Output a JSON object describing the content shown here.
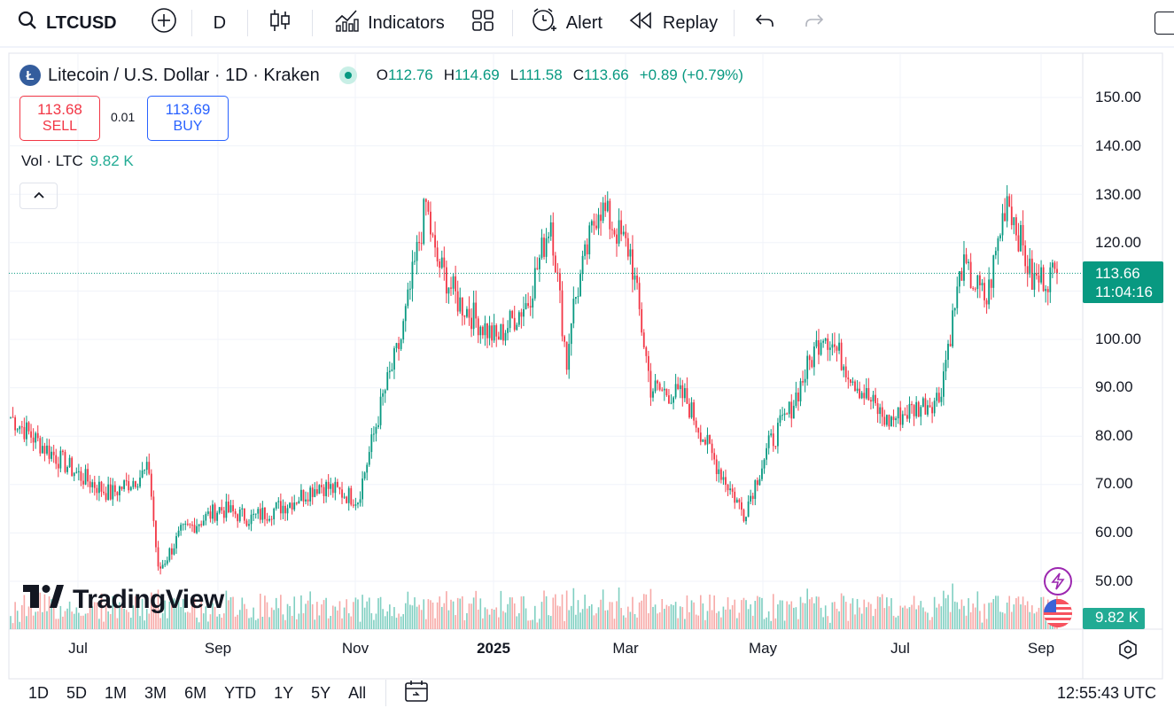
{
  "toolbar": {
    "symbol": "LTCUSD",
    "interval": "D",
    "indicators_label": "Indicators",
    "alert_label": "Alert",
    "replay_label": "Replay",
    "icons": [
      "search-icon",
      "add-symbol-icon",
      "candles-icon",
      "indicators-icon",
      "layouts-icon",
      "alert-icon",
      "replay-icon",
      "undo-icon",
      "redo-icon"
    ]
  },
  "legend": {
    "coin_letter": "Ł",
    "title": "Litecoin / U.S. Dollar · 1D · Kraken",
    "o_label": "O",
    "o_value": "112.76",
    "h_label": "H",
    "h_value": "114.69",
    "l_label": "L",
    "l_value": "111.58",
    "c_label": "C",
    "c_value": "113.66",
    "change": "+0.89 (+0.79%)",
    "sell_price": "113.68",
    "sell_label": "SELL",
    "spread": "0.01",
    "buy_price": "113.69",
    "buy_label": "BUY",
    "vol_label": "Vol · LTC",
    "vol_value": "9.82 K"
  },
  "price_axis": {
    "labels": [
      "150.00",
      "140.00",
      "130.00",
      "120.00",
      "100.00",
      "90.00",
      "80.00",
      "70.00",
      "60.00",
      "50.00"
    ],
    "last_price": "113.66",
    "countdown": "11:04:16",
    "volume_badge": "9.82 K"
  },
  "time_axis": {
    "labels": [
      "Jul",
      "Sep",
      "Nov",
      "2025",
      "Mar",
      "May",
      "Jul",
      "Sep"
    ]
  },
  "bottom": {
    "ranges": [
      "1D",
      "5D",
      "1M",
      "3M",
      "6M",
      "YTD",
      "1Y",
      "5Y",
      "All"
    ],
    "clock": "12:55:43 UTC"
  },
  "branding": {
    "logo_text": "TradingView"
  },
  "colors": {
    "up": "#089981",
    "down": "#f23645",
    "vol_up": "#7fcfc1",
    "vol_down": "#f7a9a7",
    "grid": "#f0f3fa"
  },
  "chart_data": {
    "type": "candlestick",
    "ylim": [
      45,
      152
    ],
    "x": [
      "2024-06-01",
      "2024-06-15",
      "2024-07-01",
      "2024-07-15",
      "2024-08-01",
      "2024-08-05",
      "2024-08-15",
      "2024-09-01",
      "2024-09-15",
      "2024-10-01",
      "2024-10-15",
      "2024-11-01",
      "2024-11-12",
      "2024-11-20",
      "2024-12-01",
      "2024-12-05",
      "2024-12-15",
      "2025-01-01",
      "2025-01-15",
      "2025-01-25",
      "2025-02-01",
      "2025-02-03",
      "2025-02-15",
      "2025-03-01",
      "2025-03-10",
      "2025-03-25",
      "2025-04-07",
      "2025-04-20",
      "2025-05-01",
      "2025-05-10",
      "2025-05-25",
      "2025-06-10",
      "2025-06-22",
      "2025-07-01",
      "2025-07-15",
      "2025-07-25",
      "2025-08-05",
      "2025-08-14",
      "2025-08-25",
      "2025-09-05"
    ],
    "close": [
      84,
      78,
      72,
      68,
      73,
      52,
      60,
      65,
      63,
      66,
      70,
      67,
      88,
      100,
      128,
      117,
      108,
      100,
      108,
      125,
      95,
      105,
      128,
      118,
      90,
      88,
      75,
      64,
      78,
      85,
      102,
      90,
      83,
      85,
      88,
      115,
      108,
      130,
      112,
      113.66
    ],
    "series": [
      {
        "values": [
          84,
          78,
          72,
          68,
          73,
          52,
          60,
          65,
          63,
          66,
          70,
          67,
          88,
          100,
          128,
          117,
          108,
          100,
          108,
          125,
          95,
          105,
          128,
          118,
          90,
          88,
          75,
          64,
          78,
          85,
          102,
          90,
          83,
          85,
          88,
          115,
          108,
          130,
          112,
          113.66
        ]
      }
    ]
  }
}
